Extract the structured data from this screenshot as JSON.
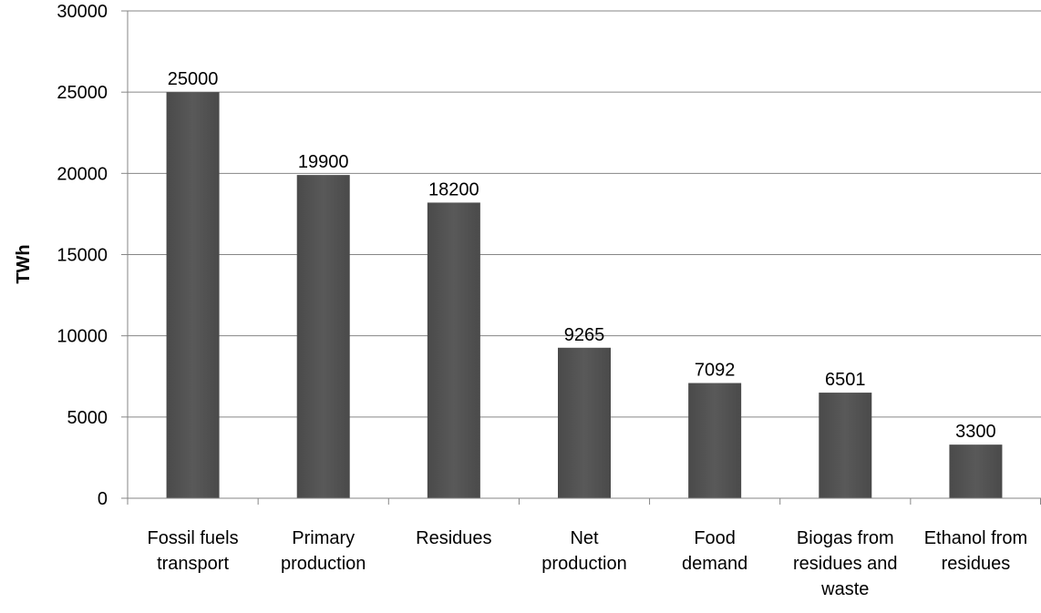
{
  "chart_data": {
    "type": "bar",
    "title": "",
    "xlabel": "",
    "ylabel": "TWh",
    "ylim": [
      0,
      30000
    ],
    "yticks": [
      0,
      5000,
      10000,
      15000,
      20000,
      25000,
      30000
    ],
    "ytick_labels": [
      "0",
      "5000",
      "10000",
      "15000",
      "20000",
      "25000",
      "30000"
    ],
    "grid": "horizontal",
    "legend": "none",
    "bar_color": "#595959",
    "categories": [
      [
        "Fossil fuels",
        "transport"
      ],
      [
        "Primary",
        "production"
      ],
      [
        "Residues"
      ],
      [
        "Net",
        "production"
      ],
      [
        "Food",
        "demand"
      ],
      [
        "Biogas from",
        "residues and",
        "waste"
      ],
      [
        "Ethanol from",
        "residues"
      ]
    ],
    "values": [
      25000,
      19900,
      18200,
      9265,
      7092,
      6501,
      3300
    ],
    "data_labels": [
      "25000",
      "19900",
      "18200",
      "9265",
      "7092",
      "6501",
      "3300"
    ]
  }
}
